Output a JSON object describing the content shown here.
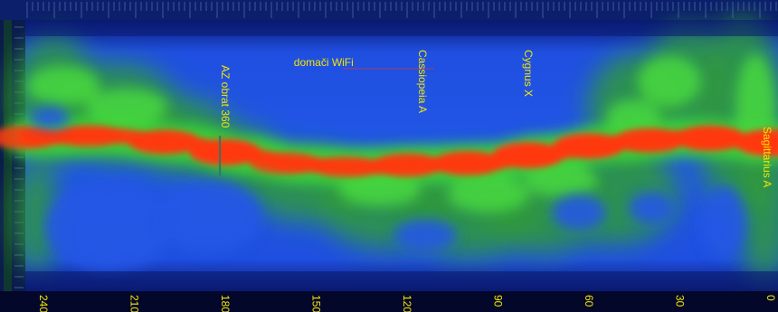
{
  "chart_data": {
    "type": "heatmap",
    "title": "",
    "xlabel": "",
    "ylabel": "",
    "xlim": [
      0,
      240
    ],
    "x_direction": "decreasing-to-right",
    "x_ticks": [
      {
        "value": 240,
        "label": "240"
      },
      {
        "value": 210,
        "label": "210"
      },
      {
        "value": 180,
        "label": "180"
      },
      {
        "value": 150,
        "label": "150"
      },
      {
        "value": 120,
        "label": "120"
      },
      {
        "value": 90,
        "label": "90"
      },
      {
        "value": 60,
        "label": "60"
      },
      {
        "value": 30,
        "label": "30"
      },
      {
        "value": 0,
        "label": "0"
      }
    ],
    "colormap": [
      "#0a1e8c",
      "#1f4fe0",
      "#2b8a3e",
      "#3ad23a",
      "#ff3a12"
    ],
    "colors": {
      "background": "#03082a",
      "field": "#1f4fe0",
      "label_text": "#f4e600",
      "tick_text": "#f4e600"
    },
    "annotations": [
      {
        "text": "AZ obrat 360",
        "x": 180,
        "orientation": "vertical",
        "marker": true
      },
      {
        "text": "domači WiFi",
        "x": 135,
        "orientation": "horizontal"
      },
      {
        "text": "Cassiopeia A",
        "x": 115,
        "orientation": "vertical"
      },
      {
        "text": "Cygnus X",
        "x": 80,
        "orientation": "vertical"
      },
      {
        "text": "Sagittarius A",
        "x": 0,
        "orientation": "vertical"
      }
    ],
    "hot_band": {
      "description_x_values": [
        246,
        225,
        200,
        180,
        160,
        140,
        120,
        100,
        80,
        60,
        40,
        20,
        0
      ],
      "intensity": [
        0.75,
        0.7,
        0.85,
        0.95,
        0.7,
        0.65,
        0.8,
        0.85,
        0.95,
        0.9,
        0.85,
        0.9,
        1.0
      ]
    }
  }
}
